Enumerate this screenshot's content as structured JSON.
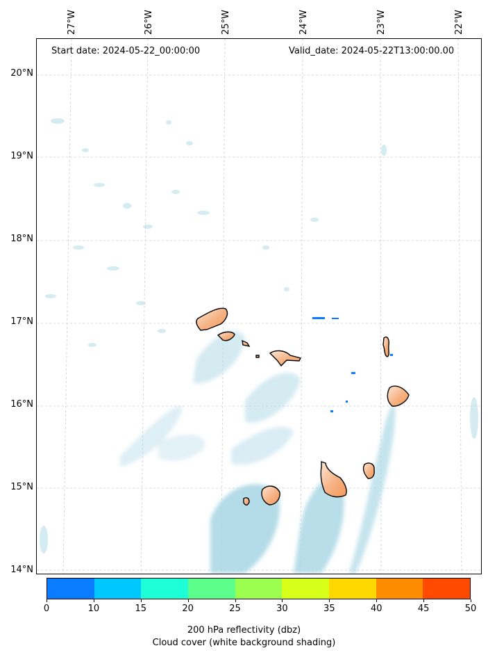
{
  "header": {
    "start_date": "Start date: 2024-05-22_00:00:00",
    "valid_date": "Valid_date: 2024-05-22T13:00:00.00"
  },
  "axes": {
    "lon_labels": [
      "27°W",
      "26°W",
      "25°W",
      "24°W",
      "23°W",
      "22°W"
    ],
    "lat_labels": [
      "20°N",
      "19°N",
      "18°N",
      "17°N",
      "16°N",
      "15°N",
      "14°N"
    ],
    "lon_values": [
      -27,
      -26,
      -25,
      -24,
      -23,
      -22
    ],
    "lat_values": [
      20,
      19,
      18,
      17,
      16,
      15,
      14
    ],
    "lon_range": [
      -27.35,
      -21.8
    ],
    "lat_range": [
      13.95,
      20.4
    ],
    "grid": "dashed light gray"
  },
  "colorbar": {
    "ticks": [
      "0",
      "10",
      "15",
      "20",
      "25",
      "30",
      "35",
      "40",
      "45",
      "50"
    ],
    "colors": [
      "#0a7cff",
      "#00c8ff",
      "#1effd8",
      "#5cff8c",
      "#9cff50",
      "#d8ff1a",
      "#ffd800",
      "#ff8c00",
      "#ff4a00"
    ],
    "label_line1": "200 hPa reflectivity (dbz)",
    "label_line2": "Cloud cover (white background shading)"
  },
  "colors": {
    "cloud": "#acd8e6",
    "island_fill": "#f4a46a",
    "island_light": "#fde7d6",
    "reflectivity_blue": "#0a7cff"
  }
}
